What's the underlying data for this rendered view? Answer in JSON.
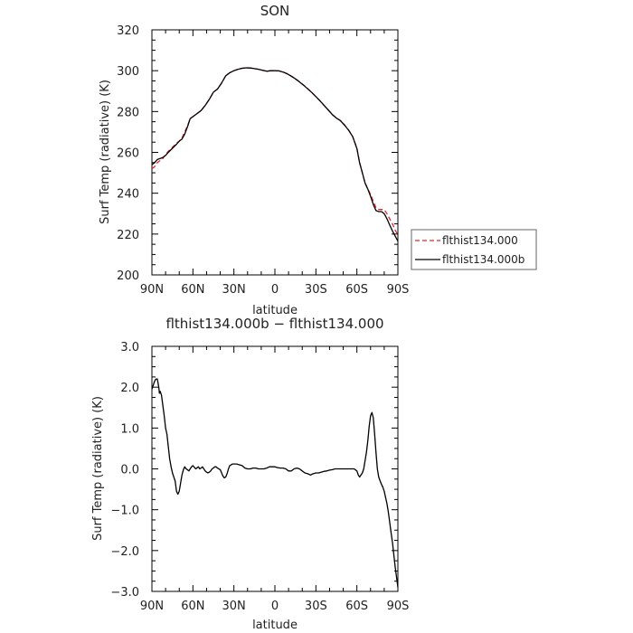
{
  "chart_data": [
    {
      "type": "line",
      "title": "SON",
      "xlabel": "latitude",
      "ylabel": "Surf Temp (radiative) (K)",
      "xlim": [
        90,
        -90
      ],
      "ylim": [
        200,
        320
      ],
      "x_ticks": [
        90,
        60,
        30,
        0,
        -30,
        -60,
        -90
      ],
      "x_tick_labels": [
        "90N",
        "60N",
        "30N",
        "0",
        "30S",
        "60S",
        "90S"
      ],
      "y_ticks": [
        200,
        220,
        240,
        260,
        280,
        300,
        320
      ],
      "y_tick_labels": [
        "200",
        "220",
        "240",
        "260",
        "280",
        "300",
        "320"
      ],
      "legend_position": "right",
      "series": [
        {
          "name": "flthist134.000",
          "color": "#e8262a",
          "dash": true,
          "x": [
            90,
            88,
            86,
            84,
            82,
            80,
            78,
            75,
            72,
            70,
            68,
            66,
            64,
            62,
            60,
            57,
            54,
            51,
            48,
            45,
            42,
            39,
            36,
            33,
            30,
            27,
            24,
            21,
            18,
            15,
            12,
            9,
            6,
            3,
            0,
            -3,
            -6,
            -9,
            -12,
            -15,
            -18,
            -21,
            -24,
            -27,
            -30,
            -33,
            -36,
            -39,
            -42,
            -45,
            -48,
            -51,
            -54,
            -57,
            -60,
            -62,
            -64,
            -66,
            -68,
            -70,
            -72,
            -74,
            -76,
            -78,
            -80,
            -82,
            -84,
            -86,
            -88,
            -90
          ],
          "values": [
            252,
            253,
            255,
            256,
            257,
            259,
            260.5,
            262.5,
            264.5,
            265.5,
            267,
            270,
            273,
            276.5,
            277.5,
            279,
            280.5,
            283,
            286,
            289.5,
            291,
            294,
            297.5,
            299,
            300,
            300.7,
            301.2,
            301.4,
            301.3,
            301,
            300.7,
            300.2,
            299.8,
            300,
            300,
            299.9,
            299.3,
            298.5,
            297.4,
            296,
            294.6,
            293,
            291.2,
            289.3,
            287.3,
            285.2,
            283,
            280.8,
            278.5,
            276.9,
            275.6,
            273.4,
            270.9,
            267.7,
            262,
            255,
            250,
            245,
            242,
            239.5,
            236,
            233,
            232,
            232,
            232,
            230,
            227.5,
            225,
            222,
            219.5
          ]
        },
        {
          "name": "flthist134.000b",
          "color": "#000000",
          "dash": false,
          "x": [
            90,
            88,
            86,
            84,
            82,
            80,
            78,
            75,
            72,
            70,
            68,
            66,
            64,
            62,
            60,
            57,
            54,
            51,
            48,
            45,
            42,
            39,
            36,
            33,
            30,
            27,
            24,
            21,
            18,
            15,
            12,
            9,
            6,
            3,
            0,
            -3,
            -6,
            -9,
            -12,
            -15,
            -18,
            -21,
            -24,
            -27,
            -30,
            -33,
            -36,
            -39,
            -42,
            -45,
            -48,
            -51,
            -54,
            -57,
            -60,
            -62,
            -64,
            -66,
            -68,
            -70,
            -72,
            -74,
            -76,
            -78,
            -80,
            -82,
            -84,
            -86,
            -88,
            -90
          ],
          "values": [
            254,
            255,
            256.5,
            257,
            257.5,
            258.5,
            260,
            262,
            264,
            265.5,
            266.5,
            269,
            272.5,
            276.5,
            277.5,
            279,
            280.5,
            283,
            286,
            289.5,
            291,
            294,
            297.5,
            299,
            300,
            300.7,
            301.2,
            301.4,
            301.3,
            301,
            300.7,
            300.2,
            299.7,
            300,
            300,
            299.9,
            299.3,
            298.5,
            297.3,
            296,
            294.5,
            292.9,
            291.1,
            289.3,
            287.3,
            285.2,
            283,
            280.8,
            278.5,
            276.8,
            275.5,
            273.3,
            270.8,
            267.6,
            261.8,
            254.8,
            250,
            245,
            242,
            238.5,
            234.5,
            231.5,
            231,
            231,
            230,
            227.5,
            224.5,
            221.5,
            219,
            216.5
          ]
        }
      ]
    },
    {
      "type": "line",
      "title": "flthist134.000b − flthist134.000",
      "xlabel": "latitude",
      "ylabel": "Surf Temp (radiative) (K)",
      "xlim": [
        90,
        -90
      ],
      "ylim": [
        -3.0,
        3.0
      ],
      "x_ticks": [
        90,
        60,
        30,
        0,
        -30,
        -60,
        -90
      ],
      "x_tick_labels": [
        "90N",
        "60N",
        "30N",
        "0",
        "30S",
        "60S",
        "90S"
      ],
      "y_ticks": [
        -3,
        -2,
        -1,
        0,
        1,
        2,
        3
      ],
      "y_tick_labels": [
        "−3.0",
        "−2.0",
        "−1.0",
        "0.0",
        "1.0",
        "2.0",
        "3.0"
      ],
      "series": [
        {
          "color": "#000000",
          "x": [
            90,
            89,
            88,
            87,
            86,
            85,
            84.5,
            84,
            83,
            82,
            81,
            80,
            79,
            78,
            77,
            76,
            75,
            74,
            73,
            72,
            71,
            70,
            69,
            68,
            67,
            66,
            65,
            64,
            63,
            62,
            61,
            60,
            58,
            56,
            55,
            54,
            53,
            52,
            51,
            50,
            49,
            48,
            47,
            46,
            45,
            44,
            43,
            42,
            41,
            40,
            39,
            38,
            37,
            36,
            35,
            34,
            33,
            32,
            31,
            30,
            28,
            26,
            24,
            22,
            20,
            18,
            16,
            14,
            12,
            10,
            8,
            6,
            4,
            2,
            0,
            -2,
            -4,
            -6,
            -8,
            -10,
            -12,
            -14,
            -16,
            -18,
            -20,
            -22,
            -24,
            -26,
            -28,
            -30,
            -32,
            -34,
            -36,
            -38,
            -40,
            -42,
            -44,
            -46,
            -48,
            -50,
            -52,
            -54,
            -56,
            -58,
            -60,
            -61,
            -62,
            -63,
            -64,
            -65,
            -66,
            -67,
            -68,
            -69,
            -70,
            -71,
            -72,
            -73,
            -74,
            -75,
            -76,
            -77,
            -78,
            -79,
            -80,
            -81,
            -82,
            -83,
            -84,
            -85,
            -86,
            -87,
            -88,
            -89,
            -90
          ],
          "values": [
            1.95,
            2.05,
            2.15,
            2.2,
            2.2,
            2.0,
            1.85,
            1.9,
            1.8,
            1.55,
            1.3,
            1.0,
            0.85,
            0.55,
            0.25,
            0.05,
            -0.1,
            -0.2,
            -0.3,
            -0.55,
            -0.62,
            -0.55,
            -0.35,
            -0.15,
            -0.02,
            0.05,
            0.0,
            -0.02,
            -0.05,
            0.0,
            0.05,
            0.08,
            0.0,
            0.05,
            0.0,
            0.02,
            0.05,
            0.0,
            -0.05,
            -0.08,
            -0.1,
            -0.08,
            -0.05,
            0.0,
            0.02,
            0.05,
            0.05,
            0.02,
            0.0,
            -0.02,
            -0.1,
            -0.18,
            -0.22,
            -0.2,
            -0.12,
            0.0,
            0.08,
            0.1,
            0.12,
            0.12,
            0.12,
            0.1,
            0.08,
            0.02,
            0.0,
            0.0,
            0.02,
            0.02,
            0.0,
            0.0,
            0.0,
            0.02,
            0.05,
            0.05,
            0.05,
            0.03,
            0.02,
            0.02,
            0.0,
            -0.05,
            -0.05,
            0.0,
            0.02,
            0.0,
            -0.05,
            -0.1,
            -0.12,
            -0.15,
            -0.12,
            -0.1,
            -0.1,
            -0.08,
            -0.06,
            -0.05,
            -0.03,
            -0.02,
            0.0,
            0.0,
            0.0,
            0.0,
            0.0,
            0.0,
            0.0,
            0.0,
            -0.05,
            -0.15,
            -0.2,
            -0.15,
            -0.1,
            0.0,
            0.2,
            0.4,
            0.7,
            1.05,
            1.3,
            1.38,
            1.25,
            0.85,
            0.4,
            0.0,
            -0.2,
            -0.3,
            -0.38,
            -0.45,
            -0.55,
            -0.7,
            -0.85,
            -1.05,
            -1.3,
            -1.55,
            -1.8,
            -2.1,
            -2.4,
            -2.65,
            -2.9
          ]
        }
      ]
    }
  ]
}
